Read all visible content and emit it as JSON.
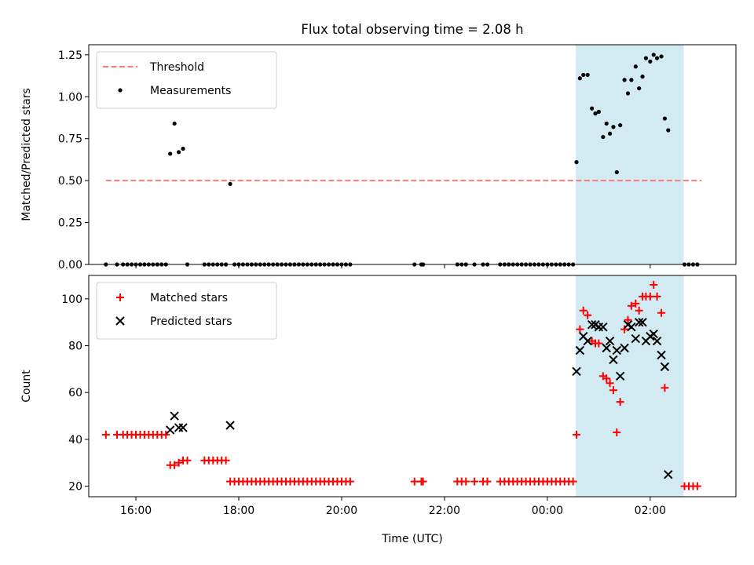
{
  "title": "Flux total observing time = 2.08 h",
  "shade_color": "#add8e6",
  "chart_data": [
    {
      "type": "scatter",
      "ylabel": "Matched/Predicted stars",
      "ylim": [
        0,
        1.31
      ],
      "xlim": [
        "15:05",
        "03:40"
      ],
      "yticks": [
        0.0,
        0.25,
        0.5,
        0.75,
        1.0,
        1.25
      ],
      "ytick_labels": [
        "0.00",
        "0.25",
        "0.50",
        "0.75",
        "1.00",
        "1.25"
      ],
      "legend_position": "top-left",
      "shaded_region": [
        "00:33",
        "02:39"
      ],
      "threshold": {
        "name": "Threshold",
        "color": "#ff7777",
        "value": 0.5,
        "x_range": [
          "15:25",
          "03:00"
        ]
      },
      "series": [
        {
          "name": "Measurements",
          "color": "#000000",
          "marker": "dot",
          "points": [
            [
              "15:25",
              0
            ],
            [
              "15:38",
              0
            ],
            [
              "15:45",
              0
            ],
            [
              "15:50",
              0
            ],
            [
              "15:55",
              0
            ],
            [
              "16:00",
              0
            ],
            [
              "16:05",
              0
            ],
            [
              "16:10",
              0
            ],
            [
              "16:15",
              0
            ],
            [
              "16:20",
              0
            ],
            [
              "16:25",
              0
            ],
            [
              "16:30",
              0
            ],
            [
              "16:35",
              0
            ],
            [
              "16:40",
              0.66
            ],
            [
              "16:45",
              0.84
            ],
            [
              "16:50",
              0.67
            ],
            [
              "16:55",
              0.69
            ],
            [
              "17:00",
              0
            ],
            [
              "17:20",
              0
            ],
            [
              "17:25",
              0
            ],
            [
              "17:30",
              0
            ],
            [
              "17:35",
              0
            ],
            [
              "17:40",
              0
            ],
            [
              "17:45",
              0
            ],
            [
              "17:50",
              0.48
            ],
            [
              "17:55",
              0
            ],
            [
              "18:00",
              0
            ],
            [
              "18:05",
              0
            ],
            [
              "18:10",
              0
            ],
            [
              "18:15",
              0
            ],
            [
              "18:20",
              0
            ],
            [
              "18:25",
              0
            ],
            [
              "18:30",
              0
            ],
            [
              "18:35",
              0
            ],
            [
              "18:40",
              0
            ],
            [
              "18:45",
              0
            ],
            [
              "18:50",
              0
            ],
            [
              "18:55",
              0
            ],
            [
              "19:00",
              0
            ],
            [
              "19:05",
              0
            ],
            [
              "19:10",
              0
            ],
            [
              "19:15",
              0
            ],
            [
              "19:20",
              0
            ],
            [
              "19:25",
              0
            ],
            [
              "19:30",
              0
            ],
            [
              "19:35",
              0
            ],
            [
              "19:40",
              0
            ],
            [
              "19:45",
              0
            ],
            [
              "19:50",
              0
            ],
            [
              "19:55",
              0
            ],
            [
              "20:00",
              0
            ],
            [
              "20:05",
              0
            ],
            [
              "20:10",
              0
            ],
            [
              "21:25",
              0
            ],
            [
              "21:33",
              0
            ],
            [
              "21:35",
              0
            ],
            [
              "22:15",
              0
            ],
            [
              "22:20",
              0
            ],
            [
              "22:25",
              0
            ],
            [
              "22:35",
              0
            ],
            [
              "22:45",
              0
            ],
            [
              "22:50",
              0
            ],
            [
              "23:05",
              0
            ],
            [
              "23:10",
              0
            ],
            [
              "23:15",
              0
            ],
            [
              "23:20",
              0
            ],
            [
              "23:25",
              0
            ],
            [
              "23:30",
              0
            ],
            [
              "23:35",
              0
            ],
            [
              "23:40",
              0
            ],
            [
              "23:45",
              0
            ],
            [
              "23:50",
              0
            ],
            [
              "23:55",
              0
            ],
            [
              "00:00",
              0
            ],
            [
              "00:05",
              0
            ],
            [
              "00:10",
              0
            ],
            [
              "00:15",
              0
            ],
            [
              "00:20",
              0
            ],
            [
              "00:25",
              0
            ],
            [
              "00:30",
              0
            ],
            [
              "00:34",
              0.61
            ],
            [
              "00:38",
              1.11
            ],
            [
              "00:42",
              1.13
            ],
            [
              "00:47",
              1.13
            ],
            [
              "00:52",
              0.93
            ],
            [
              "00:56",
              0.9
            ],
            [
              "01:00",
              0.91
            ],
            [
              "01:05",
              0.76
            ],
            [
              "01:09",
              0.84
            ],
            [
              "01:13",
              0.78
            ],
            [
              "01:17",
              0.82
            ],
            [
              "01:21",
              0.55
            ],
            [
              "01:25",
              0.83
            ],
            [
              "01:30",
              1.1
            ],
            [
              "01:34",
              1.02
            ],
            [
              "01:38",
              1.1
            ],
            [
              "01:43",
              1.18
            ],
            [
              "01:47",
              1.05
            ],
            [
              "01:51",
              1.12
            ],
            [
              "01:55",
              1.23
            ],
            [
              "02:00",
              1.21
            ],
            [
              "02:04",
              1.25
            ],
            [
              "02:08",
              1.23
            ],
            [
              "02:13",
              1.24
            ],
            [
              "02:17",
              0.87
            ],
            [
              "02:21",
              0.8
            ],
            [
              "02:40",
              0
            ],
            [
              "02:45",
              0
            ],
            [
              "02:50",
              0
            ],
            [
              "02:55",
              0
            ]
          ]
        }
      ]
    },
    {
      "type": "scatter",
      "xlabel": "Time (UTC)",
      "ylabel": "Count",
      "ylim": [
        15.5,
        110
      ],
      "xlim": [
        "15:05",
        "03:40"
      ],
      "xticks": [
        "16:00",
        "18:00",
        "20:00",
        "22:00",
        "00:00",
        "02:00"
      ],
      "xtick_labels": [
        "16:00",
        "18:00",
        "20:00",
        "22:00",
        "00:00",
        "02:00"
      ],
      "yticks": [
        20,
        40,
        60,
        80,
        100
      ],
      "ytick_labels": [
        "20",
        "40",
        "60",
        "80",
        "100"
      ],
      "legend_position": "top-left",
      "shaded_region": [
        "00:33",
        "02:39"
      ],
      "series": [
        {
          "name": "Matched stars",
          "color": "#ff0000",
          "marker": "plus",
          "points": [
            [
              "15:25",
              42
            ],
            [
              "15:38",
              42
            ],
            [
              "15:45",
              42
            ],
            [
              "15:50",
              42
            ],
            [
              "15:55",
              42
            ],
            [
              "16:00",
              42
            ],
            [
              "16:05",
              42
            ],
            [
              "16:10",
              42
            ],
            [
              "16:15",
              42
            ],
            [
              "16:20",
              42
            ],
            [
              "16:25",
              42
            ],
            [
              "16:30",
              42
            ],
            [
              "16:35",
              42
            ],
            [
              "16:40",
              29
            ],
            [
              "16:45",
              29
            ],
            [
              "16:50",
              30
            ],
            [
              "16:55",
              31
            ],
            [
              "17:00",
              31
            ],
            [
              "17:20",
              31
            ],
            [
              "17:25",
              31
            ],
            [
              "17:30",
              31
            ],
            [
              "17:35",
              31
            ],
            [
              "17:40",
              31
            ],
            [
              "17:45",
              31
            ],
            [
              "17:50",
              22
            ],
            [
              "17:55",
              22
            ],
            [
              "18:00",
              22
            ],
            [
              "18:05",
              22
            ],
            [
              "18:10",
              22
            ],
            [
              "18:15",
              22
            ],
            [
              "18:20",
              22
            ],
            [
              "18:25",
              22
            ],
            [
              "18:30",
              22
            ],
            [
              "18:35",
              22
            ],
            [
              "18:40",
              22
            ],
            [
              "18:45",
              22
            ],
            [
              "18:50",
              22
            ],
            [
              "18:55",
              22
            ],
            [
              "19:00",
              22
            ],
            [
              "19:05",
              22
            ],
            [
              "19:10",
              22
            ],
            [
              "19:15",
              22
            ],
            [
              "19:20",
              22
            ],
            [
              "19:25",
              22
            ],
            [
              "19:30",
              22
            ],
            [
              "19:35",
              22
            ],
            [
              "19:40",
              22
            ],
            [
              "19:45",
              22
            ],
            [
              "19:50",
              22
            ],
            [
              "19:55",
              22
            ],
            [
              "20:00",
              22
            ],
            [
              "20:05",
              22
            ],
            [
              "20:10",
              22
            ],
            [
              "21:25",
              22
            ],
            [
              "21:33",
              22
            ],
            [
              "21:35",
              22
            ],
            [
              "22:15",
              22
            ],
            [
              "22:20",
              22
            ],
            [
              "22:25",
              22
            ],
            [
              "22:35",
              22
            ],
            [
              "22:45",
              22
            ],
            [
              "22:50",
              22
            ],
            [
              "23:05",
              22
            ],
            [
              "23:10",
              22
            ],
            [
              "23:15",
              22
            ],
            [
              "23:20",
              22
            ],
            [
              "23:25",
              22
            ],
            [
              "23:30",
              22
            ],
            [
              "23:35",
              22
            ],
            [
              "23:40",
              22
            ],
            [
              "23:45",
              22
            ],
            [
              "23:50",
              22
            ],
            [
              "23:55",
              22
            ],
            [
              "00:00",
              22
            ],
            [
              "00:05",
              22
            ],
            [
              "00:10",
              22
            ],
            [
              "00:15",
              22
            ],
            [
              "00:20",
              22
            ],
            [
              "00:25",
              22
            ],
            [
              "00:30",
              22
            ],
            [
              "00:34",
              42
            ],
            [
              "00:38",
              87
            ],
            [
              "00:42",
              95
            ],
            [
              "00:47",
              93
            ],
            [
              "00:52",
              82
            ],
            [
              "00:56",
              81
            ],
            [
              "01:00",
              81
            ],
            [
              "01:05",
              67
            ],
            [
              "01:09",
              66
            ],
            [
              "01:13",
              64
            ],
            [
              "01:17",
              61
            ],
            [
              "01:21",
              43
            ],
            [
              "01:25",
              56
            ],
            [
              "01:30",
              87
            ],
            [
              "01:34",
              91
            ],
            [
              "01:38",
              97
            ],
            [
              "01:43",
              98
            ],
            [
              "01:47",
              95
            ],
            [
              "01:51",
              101
            ],
            [
              "01:55",
              101
            ],
            [
              "02:00",
              101
            ],
            [
              "02:04",
              106
            ],
            [
              "02:08",
              101
            ],
            [
              "02:13",
              94
            ],
            [
              "02:17",
              62
            ],
            [
              "02:40",
              20
            ],
            [
              "02:45",
              20
            ],
            [
              "02:50",
              20
            ],
            [
              "02:55",
              20
            ]
          ]
        },
        {
          "name": "Predicted stars",
          "color": "#000000",
          "marker": "x",
          "points": [
            [
              "16:40",
              44
            ],
            [
              "16:45",
              50
            ],
            [
              "16:50",
              45
            ],
            [
              "16:55",
              45
            ],
            [
              "17:50",
              46
            ],
            [
              "00:34",
              69
            ],
            [
              "00:38",
              78
            ],
            [
              "00:42",
              84
            ],
            [
              "00:47",
              82
            ],
            [
              "00:52",
              89
            ],
            [
              "00:56",
              89
            ],
            [
              "01:00",
              88
            ],
            [
              "01:05",
              88
            ],
            [
              "01:09",
              79
            ],
            [
              "01:13",
              82
            ],
            [
              "01:17",
              74
            ],
            [
              "01:21",
              78
            ],
            [
              "01:25",
              67
            ],
            [
              "01:30",
              79
            ],
            [
              "01:34",
              89
            ],
            [
              "01:38",
              88
            ],
            [
              "01:43",
              83
            ],
            [
              "01:47",
              90
            ],
            [
              "01:51",
              90
            ],
            [
              "01:55",
              82
            ],
            [
              "02:00",
              84
            ],
            [
              "02:04",
              85
            ],
            [
              "02:08",
              82
            ],
            [
              "02:13",
              76
            ],
            [
              "02:17",
              71
            ],
            [
              "02:21",
              25
            ]
          ]
        }
      ]
    }
  ]
}
